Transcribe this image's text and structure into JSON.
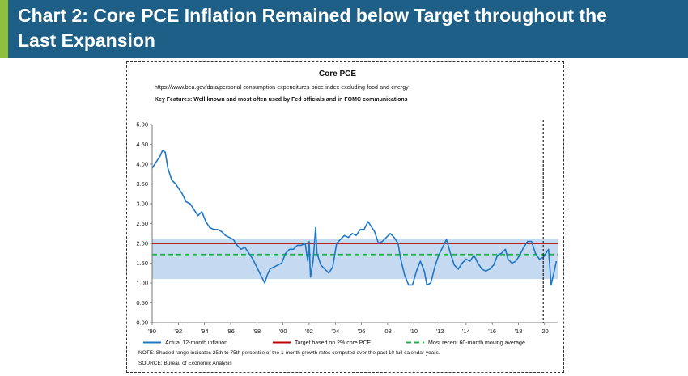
{
  "slide": {
    "title": "Chart 2: Core PCE Inflation Remained below Target throughout the Last Expansion",
    "title_line1": "Chart 2: Core PCE Inflation Remained below Target throughout the",
    "title_line2": "Last Expansion",
    "colors": {
      "header_bg": "#1d5f86",
      "accent": "#8fbf3f"
    }
  },
  "chart_data": {
    "type": "line",
    "title": "Core PCE",
    "subtitle": "https://www.bea.gov/data/personal-consumption-expenditures-price-index-excluding-food-and-energy",
    "key_features": "Key Features: Well known and most often used by Fed officials and in FOMC communications",
    "x_range": [
      1990,
      2021
    ],
    "ylim": [
      0,
      5
    ],
    "y_ticks": [
      "0.00",
      "0.50",
      "1.00",
      "1.50",
      "2.00",
      "2.50",
      "3.00",
      "3.50",
      "4.00",
      "4.50",
      "5.00"
    ],
    "x_tick_values": [
      1990,
      1992,
      1994,
      1996,
      1998,
      2000,
      2002,
      2004,
      2006,
      2008,
      2010,
      2012,
      2014,
      2016,
      2018,
      2020
    ],
    "x_tick_labels": [
      "'90",
      "'92",
      "'94",
      "'96",
      "'98",
      "'00",
      "'02",
      "'04",
      "'06",
      "'08",
      "'10",
      "'12",
      "'14",
      "'16",
      "'18",
      "'20"
    ],
    "shaded_range": {
      "low": 1.1,
      "high": 2.12,
      "color": "#c5d9f1"
    },
    "vertical_marker": {
      "x": 2019.9,
      "style": "dashed"
    },
    "series": [
      {
        "name": "Actual 12-month inflation",
        "color": "#1f77c8",
        "x": [
          1990.0,
          1990.3,
          1990.6,
          1990.8,
          1991.0,
          1991.2,
          1991.5,
          1991.8,
          1992.0,
          1992.3,
          1992.6,
          1992.9,
          1993.2,
          1993.5,
          1993.8,
          1994.1,
          1994.4,
          1994.7,
          1995.0,
          1995.3,
          1995.6,
          1995.9,
          1996.2,
          1996.5,
          1996.8,
          1997.1,
          1997.4,
          1997.7,
          1998.0,
          1998.3,
          1998.6,
          1998.8,
          1999.0,
          1999.3,
          1999.6,
          1999.9,
          2000.2,
          2000.5,
          2000.8,
          2001.1,
          2001.4,
          2001.7,
          2001.9,
          2002.0,
          2002.1,
          2002.3,
          2002.5,
          2002.6,
          2002.9,
          2003.2,
          2003.5,
          2003.8,
          2004.1,
          2004.4,
          2004.7,
          2005.0,
          2005.3,
          2005.6,
          2005.9,
          2006.2,
          2006.5,
          2006.8,
          2007.0,
          2007.3,
          2007.6,
          2007.9,
          2008.2,
          2008.5,
          2008.8,
          2009.0,
          2009.3,
          2009.6,
          2009.9,
          2010.2,
          2010.5,
          2010.8,
          2011.0,
          2011.3,
          2011.6,
          2011.9,
          2012.2,
          2012.5,
          2012.8,
          2013.1,
          2013.4,
          2013.7,
          2014.0,
          2014.3,
          2014.6,
          2014.9,
          2015.2,
          2015.5,
          2015.8,
          2016.1,
          2016.4,
          2016.7,
          2017.0,
          2017.2,
          2017.5,
          2017.8,
          2018.1,
          2018.4,
          2018.7,
          2019.0,
          2019.3,
          2019.6,
          2019.9,
          2020.1,
          2020.3,
          2020.5,
          2020.7,
          2020.9
        ],
        "y": [
          3.9,
          4.05,
          4.2,
          4.35,
          4.3,
          3.9,
          3.6,
          3.5,
          3.4,
          3.25,
          3.05,
          3.0,
          2.85,
          2.7,
          2.8,
          2.55,
          2.4,
          2.35,
          2.35,
          2.3,
          2.2,
          2.15,
          2.1,
          1.95,
          1.85,
          1.9,
          1.75,
          1.6,
          1.4,
          1.2,
          1.0,
          1.2,
          1.35,
          1.4,
          1.45,
          1.5,
          1.75,
          1.85,
          1.85,
          1.95,
          1.95,
          2.0,
          1.55,
          2.05,
          1.15,
          1.55,
          2.4,
          1.75,
          1.45,
          1.35,
          1.25,
          1.4,
          2.0,
          2.1,
          2.2,
          2.15,
          2.25,
          2.2,
          2.35,
          2.35,
          2.55,
          2.4,
          2.3,
          2.0,
          2.05,
          2.15,
          2.25,
          2.15,
          2.0,
          1.6,
          1.2,
          0.95,
          0.95,
          1.3,
          1.55,
          1.3,
          0.95,
          1.0,
          1.4,
          1.7,
          1.9,
          2.1,
          1.75,
          1.45,
          1.35,
          1.5,
          1.6,
          1.55,
          1.7,
          1.5,
          1.35,
          1.3,
          1.35,
          1.45,
          1.7,
          1.75,
          1.85,
          1.6,
          1.5,
          1.55,
          1.7,
          1.9,
          2.05,
          2.05,
          1.75,
          1.6,
          1.65,
          1.75,
          1.85,
          0.95,
          1.25,
          1.55
        ]
      },
      {
        "name": "Target based on 2% core PCE",
        "color": "#c00000",
        "value": 2.0
      },
      {
        "name": "Most recent 60-month moving average",
        "color": "#22b04a",
        "value": 1.72,
        "style": "dashed"
      }
    ],
    "legend_placement": "bottom",
    "notes": [
      "NOTE: Shaded range indicates 25th to 75th percentile of the 1-month growth rates computed over the past 10 full calendar years.",
      "SOURCE: Bureau of Economic Analysis"
    ]
  }
}
